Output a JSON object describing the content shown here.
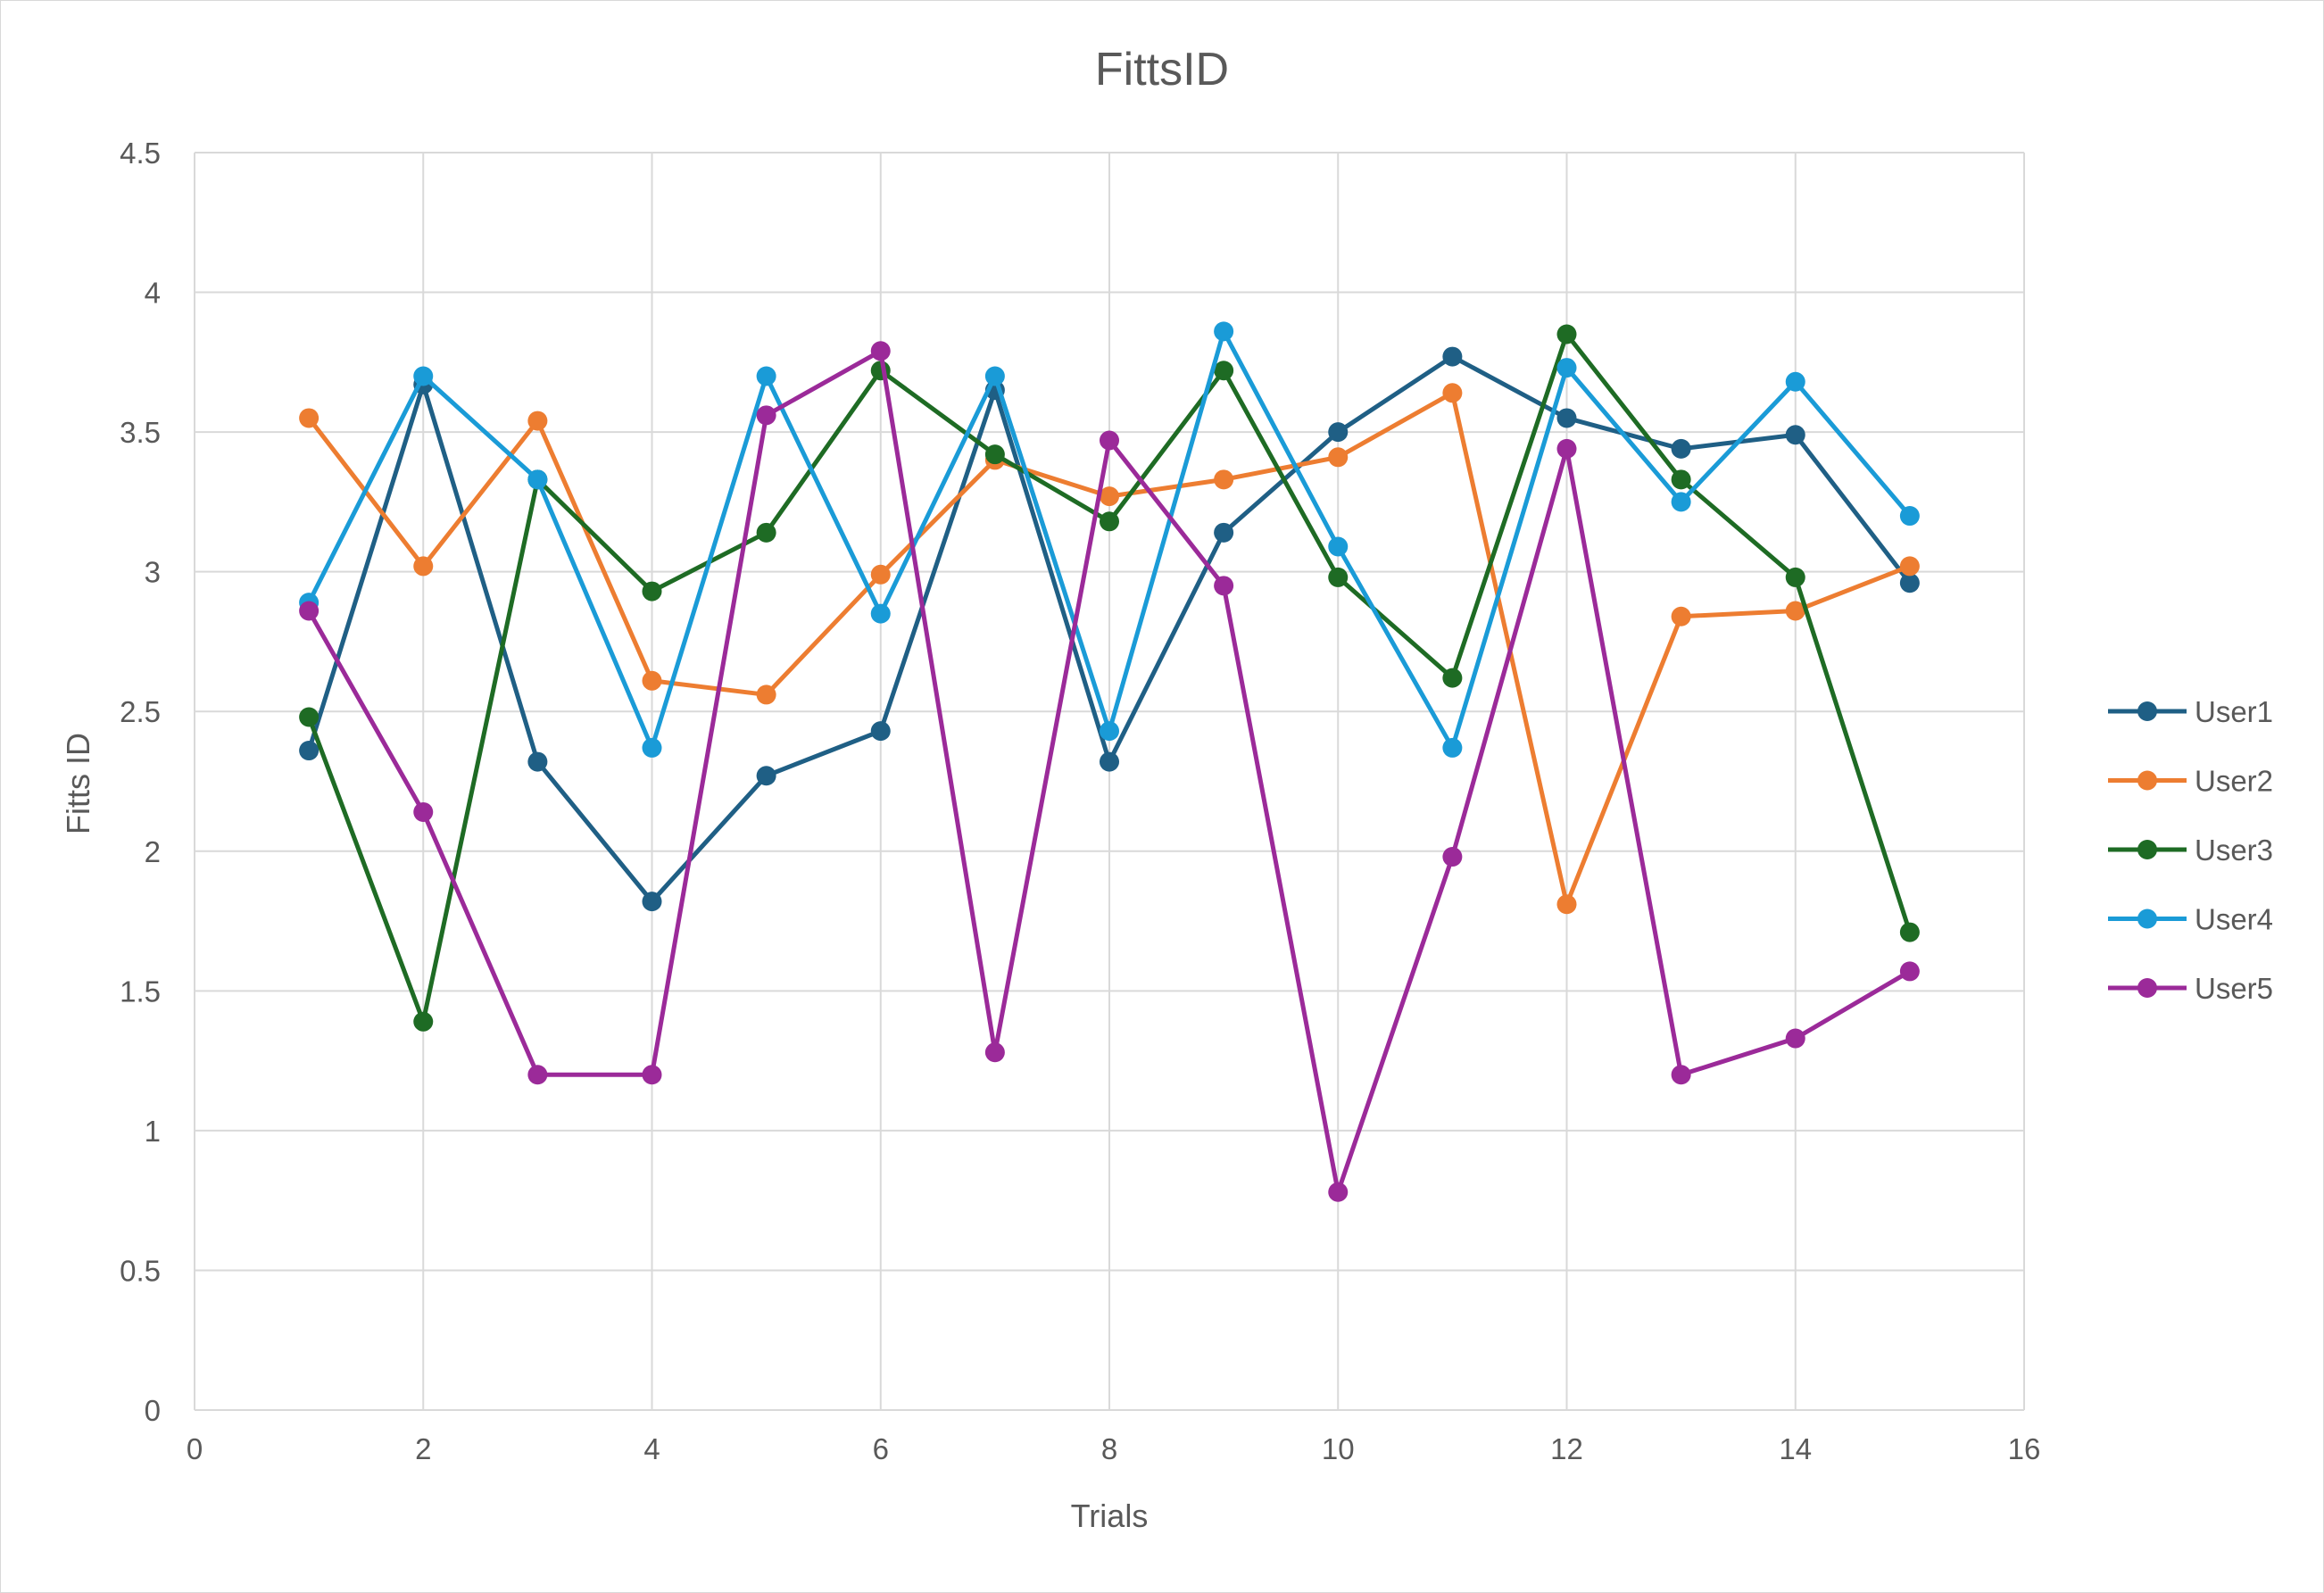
{
  "chart_data": {
    "type": "line",
    "title": "FittsID",
    "xlabel": "Trials",
    "ylabel": "Fitts ID",
    "xlim": [
      0,
      16
    ],
    "ylim": [
      0,
      4.5
    ],
    "xticks": [
      "0",
      "2",
      "4",
      "6",
      "8",
      "10",
      "12",
      "14",
      "16"
    ],
    "yticks": [
      "0",
      "0.5",
      "1",
      "1.5",
      "2",
      "2.5",
      "3",
      "3.5",
      "4",
      "4.5"
    ],
    "grid": true,
    "legend_position": "right",
    "x": [
      1,
      2,
      3,
      4,
      5,
      6,
      7,
      8,
      9,
      10,
      11,
      12,
      13,
      14,
      15
    ],
    "series": [
      {
        "name": "User1",
        "color": "#1f5f85",
        "values": [
          2.36,
          3.67,
          2.32,
          1.82,
          2.27,
          2.43,
          3.65,
          2.32,
          3.14,
          3.5,
          3.77,
          3.55,
          3.44,
          3.49,
          2.96
        ]
      },
      {
        "name": "User2",
        "color": "#ed7d31",
        "values": [
          3.55,
          3.02,
          3.54,
          2.61,
          2.56,
          2.99,
          3.4,
          3.27,
          3.33,
          3.41,
          3.64,
          1.81,
          2.84,
          2.86,
          3.02
        ]
      },
      {
        "name": "User3",
        "color": "#1e6b24",
        "values": [
          2.48,
          1.39,
          3.33,
          2.93,
          3.14,
          3.72,
          3.42,
          3.18,
          3.72,
          2.98,
          2.62,
          3.85,
          3.33,
          2.98,
          1.71
        ]
      },
      {
        "name": "User4",
        "color": "#1a9bd7",
        "values": [
          2.89,
          3.7,
          3.33,
          2.37,
          3.7,
          2.85,
          3.7,
          2.43,
          3.86,
          3.09,
          2.37,
          3.73,
          3.25,
          3.68,
          3.2
        ]
      },
      {
        "name": "User5",
        "color": "#9b2a99",
        "values": [
          2.86,
          2.14,
          1.2,
          1.2,
          3.56,
          3.79,
          1.28,
          3.47,
          2.95,
          0.78,
          1.98,
          3.44,
          1.2,
          1.33,
          1.57
        ]
      }
    ]
  }
}
